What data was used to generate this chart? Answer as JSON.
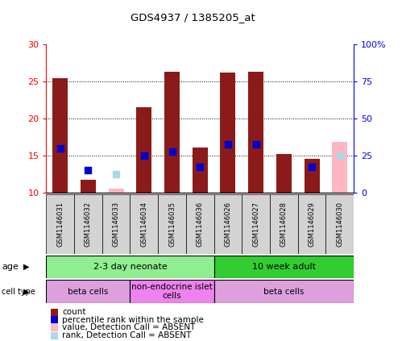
{
  "title": "GDS4937 / 1385205_at",
  "samples": [
    "GSM1146031",
    "GSM1146032",
    "GSM1146033",
    "GSM1146034",
    "GSM1146035",
    "GSM1146036",
    "GSM1146026",
    "GSM1146027",
    "GSM1146028",
    "GSM1146029",
    "GSM1146030"
  ],
  "count_values": [
    25.4,
    11.7,
    null,
    21.5,
    26.3,
    16.1,
    26.2,
    26.3,
    15.2,
    14.6,
    null
  ],
  "rank_values": [
    16.0,
    null,
    null,
    15.0,
    15.5,
    13.5,
    16.5,
    16.5,
    null,
    13.5,
    null
  ],
  "absent_count": [
    null,
    null,
    10.5,
    null,
    null,
    null,
    null,
    null,
    null,
    null,
    16.8
  ],
  "absent_rank": [
    null,
    null,
    12.5,
    null,
    null,
    null,
    null,
    null,
    null,
    null,
    15.0
  ],
  "present_rank_dot": [
    null,
    13.0,
    null,
    null,
    null,
    null,
    null,
    null,
    null,
    null,
    null
  ],
  "ylim": [
    10,
    30
  ],
  "yticks": [
    10,
    15,
    20,
    25,
    30
  ],
  "y2lim": [
    0,
    100
  ],
  "y2ticks": [
    0,
    25,
    50,
    75,
    100
  ],
  "y2ticklabels": [
    "0",
    "25",
    "50",
    "75",
    "100%"
  ],
  "bar_color": "#8B1A1A",
  "rank_color": "#0000CC",
  "absent_count_color": "#FFB6C1",
  "absent_rank_color": "#ADD8E6",
  "age_groups": [
    {
      "label": "2-3 day neonate",
      "start": 0,
      "end": 6,
      "color": "#90EE90"
    },
    {
      "label": "10 week adult",
      "start": 6,
      "end": 11,
      "color": "#32CD32"
    }
  ],
  "cell_type_groups": [
    {
      "label": "beta cells",
      "start": 0,
      "end": 3,
      "color": "#DDA0DD"
    },
    {
      "label": "non-endocrine islet\ncells",
      "start": 3,
      "end": 6,
      "color": "#EE82EE"
    },
    {
      "label": "beta cells",
      "start": 6,
      "end": 11,
      "color": "#DDA0DD"
    }
  ],
  "legend_items": [
    {
      "label": "count",
      "color": "#8B1A1A"
    },
    {
      "label": "percentile rank within the sample",
      "color": "#0000CC"
    },
    {
      "label": "value, Detection Call = ABSENT",
      "color": "#FFB6C1"
    },
    {
      "label": "rank, Detection Call = ABSENT",
      "color": "#ADD8E6"
    }
  ],
  "bar_width": 0.55,
  "rank_dot_size": 40
}
